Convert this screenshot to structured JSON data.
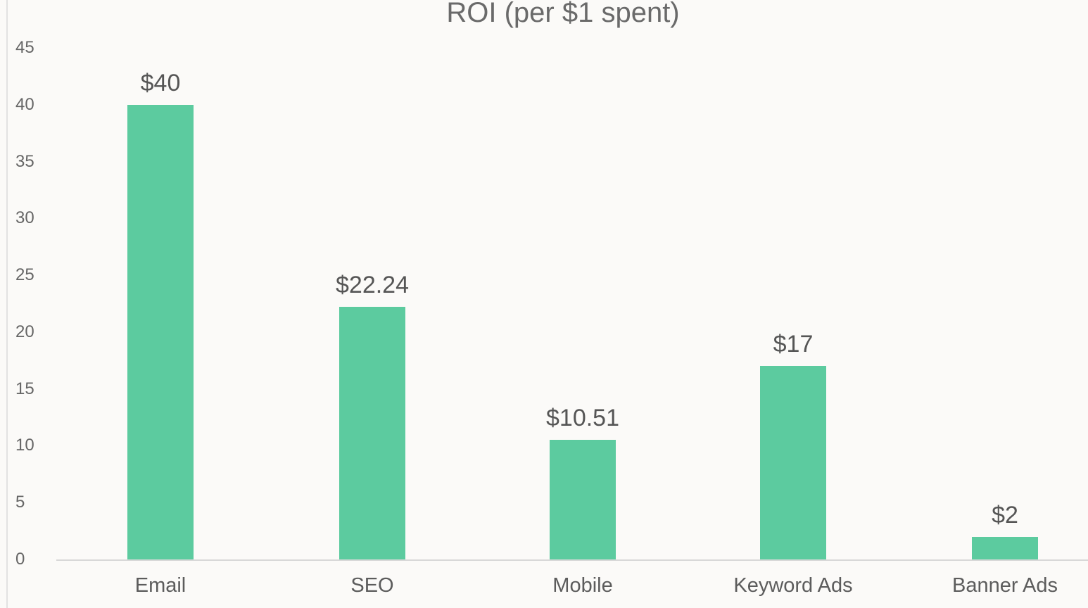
{
  "chart_data": {
    "type": "bar",
    "title": "ROI (per $1 spent)",
    "xlabel": "",
    "ylabel": "",
    "ylim": [
      0,
      45
    ],
    "yticks": [
      0,
      5,
      10,
      15,
      20,
      25,
      30,
      35,
      40,
      45
    ],
    "categories": [
      "Email",
      "SEO",
      "Mobile",
      "Keyword Ads",
      "Banner Ads"
    ],
    "values": [
      40,
      22.24,
      10.51,
      17,
      2
    ],
    "data_labels": [
      "$40",
      "$22.24",
      "$10.51",
      "$17",
      "$2"
    ],
    "bar_color": "#5ccb9f",
    "grid": false,
    "legend": "none"
  }
}
